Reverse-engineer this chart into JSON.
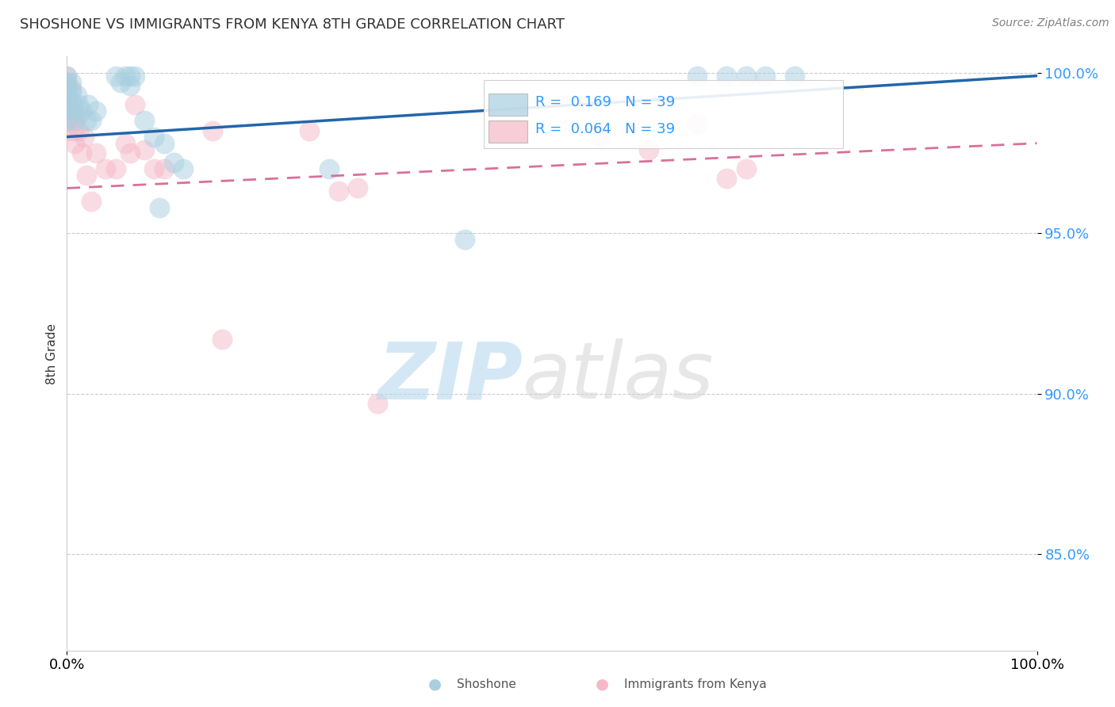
{
  "title": "SHOSHONE VS IMMIGRANTS FROM KENYA 8TH GRADE CORRELATION CHART",
  "source": "Source: ZipAtlas.com",
  "xlabel": "",
  "ylabel": "8th Grade",
  "xlim": [
    0.0,
    1.0
  ],
  "ylim": [
    0.82,
    1.005
  ],
  "yticks": [
    0.85,
    0.9,
    0.95,
    1.0
  ],
  "ytick_labels": [
    "85.0%",
    "90.0%",
    "95.0%",
    "100.0%"
  ],
  "xticks": [
    0.0,
    1.0
  ],
  "xtick_labels": [
    "0.0%",
    "100.0%"
  ],
  "r_shoshone": 0.169,
  "n_shoshone": 39,
  "r_kenya": 0.064,
  "n_kenya": 39,
  "shoshone_color": "#a8cfe0",
  "kenya_color": "#f5b8c8",
  "trend_shoshone_color": "#2166ac",
  "trend_kenya_color": "#d9709a",
  "shoshone_x": [
    0.0,
    0.0,
    0.0,
    0.0,
    0.0,
    0.0,
    0.0,
    0.0,
    0.005,
    0.005,
    0.006,
    0.007,
    0.008,
    0.01,
    0.012,
    0.015,
    0.02,
    0.022,
    0.025,
    0.03,
    0.05,
    0.055,
    0.06,
    0.065,
    0.065,
    0.07,
    0.08,
    0.09,
    0.095,
    0.1,
    0.11,
    0.12,
    0.27,
    0.41,
    0.65,
    0.68,
    0.7,
    0.72,
    0.75
  ],
  "shoshone_y": [
    0.999,
    0.997,
    0.996,
    0.994,
    0.993,
    0.99,
    0.988,
    0.985,
    0.997,
    0.994,
    0.99,
    0.988,
    0.985,
    0.993,
    0.99,
    0.988,
    0.985,
    0.99,
    0.985,
    0.988,
    0.999,
    0.997,
    0.999,
    0.999,
    0.996,
    0.999,
    0.985,
    0.98,
    0.958,
    0.978,
    0.972,
    0.97,
    0.97,
    0.948,
    0.999,
    0.999,
    0.999,
    0.999,
    0.999
  ],
  "kenya_x": [
    0.0,
    0.0,
    0.0,
    0.0,
    0.0,
    0.0,
    0.0,
    0.0,
    0.005,
    0.005,
    0.006,
    0.007,
    0.008,
    0.01,
    0.012,
    0.015,
    0.018,
    0.02,
    0.025,
    0.03,
    0.04,
    0.05,
    0.06,
    0.065,
    0.07,
    0.08,
    0.09,
    0.1,
    0.15,
    0.16,
    0.25,
    0.28,
    0.3,
    0.32,
    0.55,
    0.6,
    0.65,
    0.68,
    0.7
  ],
  "kenya_y": [
    0.999,
    0.997,
    0.995,
    0.993,
    0.99,
    0.988,
    0.985,
    0.982,
    0.995,
    0.99,
    0.986,
    0.982,
    0.978,
    0.986,
    0.982,
    0.975,
    0.98,
    0.968,
    0.96,
    0.975,
    0.97,
    0.97,
    0.978,
    0.975,
    0.99,
    0.976,
    0.97,
    0.97,
    0.982,
    0.917,
    0.982,
    0.963,
    0.964,
    0.897,
    0.98,
    0.976,
    0.984,
    0.967,
    0.97
  ],
  "trend_shoshone_start_y": 0.98,
  "trend_shoshone_end_y": 0.999,
  "trend_kenya_start_y": 0.964,
  "trend_kenya_end_y": 0.978
}
